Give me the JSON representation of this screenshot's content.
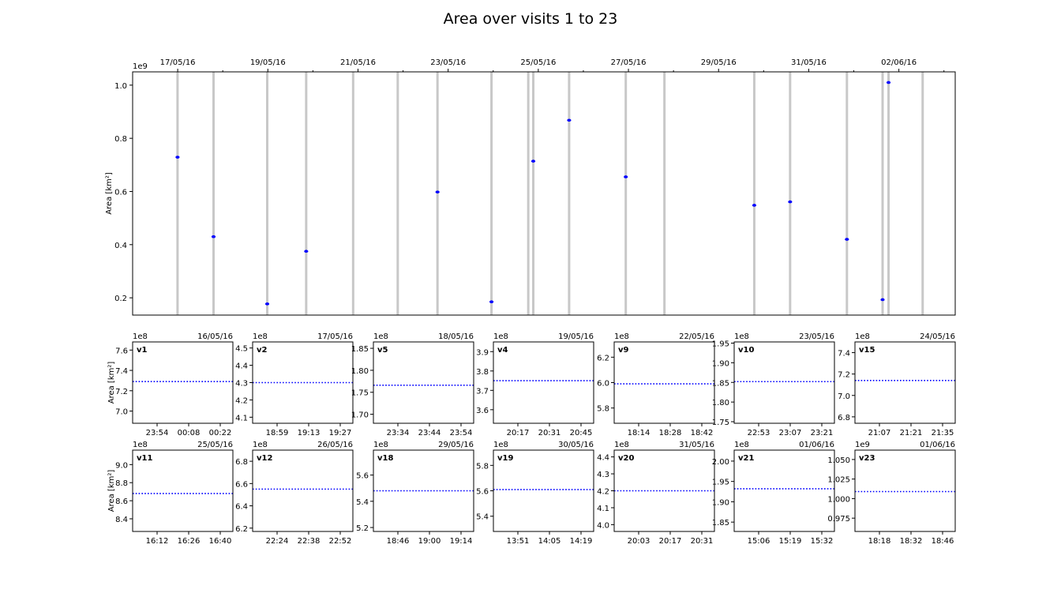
{
  "figure": {
    "title": "Area over visits 1 to 23"
  },
  "chart_data": [
    {
      "type": "scatter",
      "panel": "overview",
      "title": "",
      "ylabel": "Area [km²]",
      "y_multiplier": "1e9",
      "x_ticks": [
        "17/05/16",
        "19/05/16",
        "21/05/16",
        "23/05/16",
        "25/05/16",
        "27/05/16",
        "29/05/16",
        "31/05/16",
        "02/06/16"
      ],
      "y_ticks": [
        "0.2",
        "0.4",
        "0.6",
        "0.8",
        "1.0"
      ],
      "ylim": [
        0.135,
        1.05
      ],
      "xlim": [
        "16/05/16 00:00",
        "03/06/16 06:00"
      ],
      "grid": false,
      "band_color": "#c8c8c8",
      "marker_color": "#0000ff",
      "visit_bands": [
        "16/05/16 23:55",
        "17/05/16 19:05",
        "18/05/16 23:40",
        "19/05/16 20:25",
        "20/05/16 21:25",
        "21/05/16 21:10",
        "22/05/16 18:20",
        "23/05/16 23:05",
        "24/05/16 18:40",
        "24/05/16 21:20",
        "25/05/16 16:25",
        "26/05/16 22:35",
        "27/05/16 19:10",
        "29/05/16 19:00",
        "30/05/16 14:05",
        "31/05/16 20:20",
        "01/06/16 15:20",
        "01/06/16 18:30",
        "02/06/16 12:40"
      ],
      "points": [
        {
          "x": "16/05/16 23:55",
          "y": 0.729
        },
        {
          "x": "17/05/16 19:05",
          "y": 0.43
        },
        {
          "x": "18/05/16 23:40",
          "y": 0.177
        },
        {
          "x": "19/05/16 20:25",
          "y": 0.375
        },
        {
          "x": "22/05/16 18:20",
          "y": 0.598
        },
        {
          "x": "23/05/16 23:05",
          "y": 0.185
        },
        {
          "x": "24/05/16 21:20",
          "y": 0.714
        },
        {
          "x": "25/05/16 16:25",
          "y": 0.868
        },
        {
          "x": "26/05/16 22:35",
          "y": 0.655
        },
        {
          "x": "29/05/16 19:00",
          "y": 0.548
        },
        {
          "x": "30/05/16 14:05",
          "y": 0.561
        },
        {
          "x": "31/05/16 20:20",
          "y": 0.42
        },
        {
          "x": "01/06/16 15:20",
          "y": 0.193
        },
        {
          "x": "01/06/16 18:30",
          "y": 1.01
        }
      ]
    },
    {
      "type": "line",
      "panel": "zoom",
      "label": "v1",
      "date": "16/05/16",
      "multiplier": "1e8",
      "ylabel": "Area [km²]",
      "x_ticks": [
        "23:54",
        "00:08",
        "00:22"
      ],
      "y_ticks": [
        "7.0",
        "7.2",
        "7.4",
        "7.6"
      ],
      "ylim": [
        6.88,
        7.68
      ],
      "value": 7.29
    },
    {
      "type": "line",
      "panel": "zoom",
      "label": "v2",
      "date": "17/05/16",
      "multiplier": "1e8",
      "ylabel": "",
      "x_ticks": [
        "18:59",
        "19:13",
        "19:27"
      ],
      "y_ticks": [
        "4.1",
        "4.2",
        "4.3",
        "4.4",
        "4.5"
      ],
      "ylim": [
        4.065,
        4.535
      ],
      "value": 4.3
    },
    {
      "type": "line",
      "panel": "zoom",
      "label": "v5",
      "date": "18/05/16",
      "multiplier": "1e8",
      "ylabel": "",
      "x_ticks": [
        "23:34",
        "23:44",
        "23:54"
      ],
      "y_ticks": [
        "1.70",
        "1.75",
        "1.80",
        "1.85"
      ],
      "ylim": [
        1.6795,
        1.8645
      ],
      "value": 1.766
    },
    {
      "type": "line",
      "panel": "zoom",
      "label": "v4",
      "date": "19/05/16",
      "multiplier": "1e8",
      "ylabel": "",
      "x_ticks": [
        "20:17",
        "20:31",
        "20:45"
      ],
      "y_ticks": [
        "3.6",
        "3.7",
        "3.8",
        "3.9"
      ],
      "ylim": [
        3.53,
        3.95
      ],
      "value": 3.75
    },
    {
      "type": "line",
      "panel": "zoom",
      "label": "v9",
      "date": "22/05/16",
      "multiplier": "1e8",
      "ylabel": "",
      "x_ticks": [
        "18:14",
        "18:28",
        "18:42"
      ],
      "y_ticks": [
        "5.8",
        "6.0",
        "6.2"
      ],
      "ylim": [
        5.68,
        6.32
      ],
      "value": 5.99
    },
    {
      "type": "line",
      "panel": "zoom",
      "label": "v10",
      "date": "23/05/16",
      "multiplier": "1e8",
      "ylabel": "",
      "x_ticks": [
        "22:53",
        "23:07",
        "23:21"
      ],
      "y_ticks": [
        "1.75",
        "1.80",
        "1.85",
        "1.90",
        "1.95"
      ],
      "ylim": [
        1.746,
        1.953
      ],
      "value": 1.852
    },
    {
      "type": "line",
      "panel": "zoom",
      "label": "v15",
      "date": "24/05/16",
      "multiplier": "1e8",
      "ylabel": "",
      "x_ticks": [
        "21:07",
        "21:21",
        "21:35"
      ],
      "y_ticks": [
        "6.8",
        "7.0",
        "7.2",
        "7.4"
      ],
      "ylim": [
        6.74,
        7.5
      ],
      "value": 7.14
    },
    {
      "type": "line",
      "panel": "zoom",
      "label": "v11",
      "date": "25/05/16",
      "multiplier": "1e8",
      "ylabel": "Area [km²]",
      "x_ticks": [
        "16:12",
        "16:26",
        "16:40"
      ],
      "y_ticks": [
        "8.4",
        "8.6",
        "8.8",
        "9.0"
      ],
      "ylim": [
        8.26,
        9.16
      ],
      "value": 8.68
    },
    {
      "type": "line",
      "panel": "zoom",
      "label": "v12",
      "date": "26/05/16",
      "multiplier": "1e8",
      "ylabel": "",
      "x_ticks": [
        "22:24",
        "22:38",
        "22:52"
      ],
      "y_ticks": [
        "6.2",
        "6.4",
        "6.6",
        "6.8"
      ],
      "ylim": [
        6.17,
        6.9
      ],
      "value": 6.55
    },
    {
      "type": "line",
      "panel": "zoom",
      "label": "v18",
      "date": "29/05/16",
      "multiplier": "1e8",
      "ylabel": "",
      "x_ticks": [
        "18:46",
        "19:00",
        "19:14"
      ],
      "y_ticks": [
        "5.2",
        "5.4",
        "5.6"
      ],
      "ylim": [
        5.17,
        5.79
      ],
      "value": 5.48
    },
    {
      "type": "line",
      "panel": "zoom",
      "label": "v19",
      "date": "30/05/16",
      "multiplier": "1e8",
      "ylabel": "",
      "x_ticks": [
        "13:51",
        "14:05",
        "14:19"
      ],
      "y_ticks": [
        "5.4",
        "5.6",
        "5.8"
      ],
      "ylim": [
        5.28,
        5.92
      ],
      "value": 5.61
    },
    {
      "type": "line",
      "panel": "zoom",
      "label": "v20",
      "date": "31/05/16",
      "multiplier": "1e8",
      "ylabel": "",
      "x_ticks": [
        "20:03",
        "20:17",
        "20:31"
      ],
      "y_ticks": [
        "4.0",
        "4.1",
        "4.2",
        "4.3",
        "4.4"
      ],
      "ylim": [
        3.96,
        4.44
      ],
      "value": 4.2
    },
    {
      "type": "line",
      "panel": "zoom",
      "label": "v21",
      "date": "01/06/16",
      "multiplier": "1e8",
      "ylabel": "",
      "x_ticks": [
        "15:06",
        "15:19",
        "15:32"
      ],
      "y_ticks": [
        "1.85",
        "1.90",
        "1.95",
        "2.00"
      ],
      "ylim": [
        1.827,
        2.027
      ],
      "value": 1.932
    },
    {
      "type": "line",
      "panel": "zoom",
      "label": "v23",
      "date": "01/06/16",
      "multiplier": "1e9",
      "ylabel": "",
      "x_ticks": [
        "18:18",
        "18:32",
        "18:46"
      ],
      "y_ticks": [
        "0.975",
        "1.000",
        "1.025",
        "1.050"
      ],
      "ylim": [
        0.958,
        1.062
      ],
      "value": 1.009
    }
  ]
}
